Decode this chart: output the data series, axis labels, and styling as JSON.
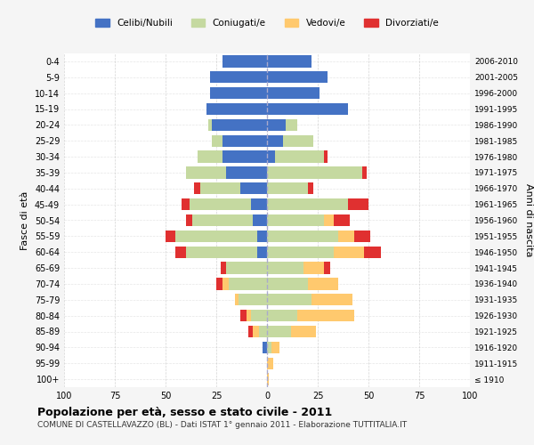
{
  "age_groups": [
    "100+",
    "95-99",
    "90-94",
    "85-89",
    "80-84",
    "75-79",
    "70-74",
    "65-69",
    "60-64",
    "55-59",
    "50-54",
    "45-49",
    "40-44",
    "35-39",
    "30-34",
    "25-29",
    "20-24",
    "15-19",
    "10-14",
    "5-9",
    "0-4"
  ],
  "birth_years": [
    "≤ 1910",
    "1911-1915",
    "1916-1920",
    "1921-1925",
    "1926-1930",
    "1931-1935",
    "1936-1940",
    "1941-1945",
    "1946-1950",
    "1951-1955",
    "1956-1960",
    "1961-1965",
    "1966-1970",
    "1971-1975",
    "1976-1980",
    "1981-1985",
    "1986-1990",
    "1991-1995",
    "1996-2000",
    "2001-2005",
    "2006-2010"
  ],
  "males": {
    "celibi": [
      0,
      0,
      2,
      0,
      0,
      0,
      0,
      0,
      5,
      5,
      7,
      8,
      13,
      20,
      22,
      22,
      27,
      30,
      28,
      28,
      22
    ],
    "coniugati": [
      0,
      0,
      0,
      4,
      8,
      14,
      19,
      20,
      35,
      40,
      30,
      30,
      20,
      20,
      12,
      5,
      2,
      0,
      0,
      0,
      0
    ],
    "vedovi": [
      0,
      0,
      0,
      3,
      2,
      2,
      3,
      0,
      0,
      0,
      0,
      0,
      0,
      0,
      0,
      0,
      0,
      0,
      0,
      0,
      0
    ],
    "divorziati": [
      0,
      0,
      0,
      2,
      3,
      0,
      3,
      3,
      5,
      5,
      3,
      4,
      3,
      0,
      0,
      0,
      0,
      0,
      0,
      0,
      0
    ]
  },
  "females": {
    "nubili": [
      0,
      0,
      0,
      0,
      0,
      0,
      0,
      0,
      0,
      0,
      0,
      0,
      0,
      0,
      4,
      8,
      9,
      40,
      26,
      30,
      22
    ],
    "coniugate": [
      0,
      0,
      2,
      12,
      15,
      22,
      20,
      18,
      33,
      35,
      28,
      40,
      20,
      47,
      24,
      15,
      6,
      0,
      0,
      0,
      0
    ],
    "vedove": [
      1,
      3,
      4,
      12,
      28,
      20,
      15,
      10,
      15,
      8,
      5,
      0,
      0,
      0,
      0,
      0,
      0,
      0,
      0,
      0,
      0
    ],
    "divorziate": [
      0,
      0,
      0,
      0,
      0,
      0,
      0,
      3,
      8,
      8,
      8,
      10,
      3,
      2,
      2,
      0,
      0,
      0,
      0,
      0,
      0
    ]
  },
  "colors": {
    "celibi": "#4472c4",
    "coniugati": "#c5d9a0",
    "vedovi": "#ffc96e",
    "divorziati": "#e03030"
  },
  "title": "Popolazione per età, sesso e stato civile - 2011",
  "subtitle": "COMUNE DI CASTELLAVAZZO (BL) - Dati ISTAT 1° gennaio 2011 - Elaborazione TUTTITALIA.IT",
  "ylabel_left": "Fasce di età",
  "ylabel_right": "Anni di nascita",
  "xlim": 100,
  "legend_labels": [
    "Celibi/Nubili",
    "Coniugati/e",
    "Vedovi/e",
    "Divorziati/e"
  ],
  "bg_color": "#f5f5f5",
  "plot_bg": "#ffffff"
}
